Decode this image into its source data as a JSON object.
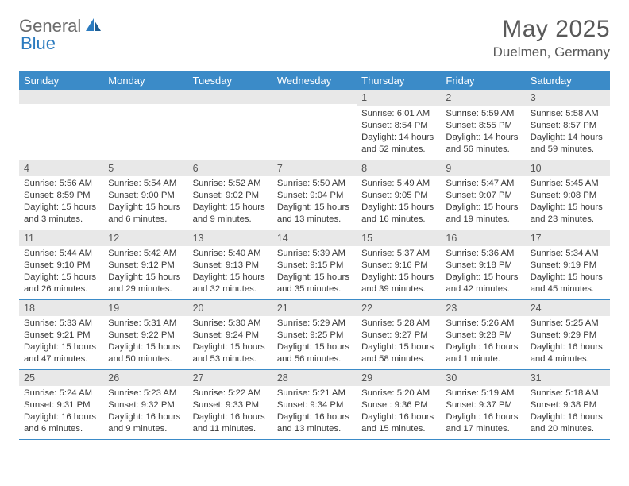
{
  "logo": {
    "part1": "General",
    "part2": "Blue"
  },
  "title": "May 2025",
  "location": "Duelmen, Germany",
  "weekday_labels": [
    "Sunday",
    "Monday",
    "Tuesday",
    "Wednesday",
    "Thursday",
    "Friday",
    "Saturday"
  ],
  "header_bg": "#3b8bc8",
  "header_fg": "#ffffff",
  "daynum_bg": "#e8e8e8",
  "row_border_color": "#3b8bc8",
  "text_color": "#3a3a3a",
  "grid": [
    [
      {
        "n": "",
        "sr": "",
        "ss": "",
        "dl": ""
      },
      {
        "n": "",
        "sr": "",
        "ss": "",
        "dl": ""
      },
      {
        "n": "",
        "sr": "",
        "ss": "",
        "dl": ""
      },
      {
        "n": "",
        "sr": "",
        "ss": "",
        "dl": ""
      },
      {
        "n": "1",
        "sr": "6:01 AM",
        "ss": "8:54 PM",
        "dl": "14 hours and 52 minutes."
      },
      {
        "n": "2",
        "sr": "5:59 AM",
        "ss": "8:55 PM",
        "dl": "14 hours and 56 minutes."
      },
      {
        "n": "3",
        "sr": "5:58 AM",
        "ss": "8:57 PM",
        "dl": "14 hours and 59 minutes."
      }
    ],
    [
      {
        "n": "4",
        "sr": "5:56 AM",
        "ss": "8:59 PM",
        "dl": "15 hours and 3 minutes."
      },
      {
        "n": "5",
        "sr": "5:54 AM",
        "ss": "9:00 PM",
        "dl": "15 hours and 6 minutes."
      },
      {
        "n": "6",
        "sr": "5:52 AM",
        "ss": "9:02 PM",
        "dl": "15 hours and 9 minutes."
      },
      {
        "n": "7",
        "sr": "5:50 AM",
        "ss": "9:04 PM",
        "dl": "15 hours and 13 minutes."
      },
      {
        "n": "8",
        "sr": "5:49 AM",
        "ss": "9:05 PM",
        "dl": "15 hours and 16 minutes."
      },
      {
        "n": "9",
        "sr": "5:47 AM",
        "ss": "9:07 PM",
        "dl": "15 hours and 19 minutes."
      },
      {
        "n": "10",
        "sr": "5:45 AM",
        "ss": "9:08 PM",
        "dl": "15 hours and 23 minutes."
      }
    ],
    [
      {
        "n": "11",
        "sr": "5:44 AM",
        "ss": "9:10 PM",
        "dl": "15 hours and 26 minutes."
      },
      {
        "n": "12",
        "sr": "5:42 AM",
        "ss": "9:12 PM",
        "dl": "15 hours and 29 minutes."
      },
      {
        "n": "13",
        "sr": "5:40 AM",
        "ss": "9:13 PM",
        "dl": "15 hours and 32 minutes."
      },
      {
        "n": "14",
        "sr": "5:39 AM",
        "ss": "9:15 PM",
        "dl": "15 hours and 35 minutes."
      },
      {
        "n": "15",
        "sr": "5:37 AM",
        "ss": "9:16 PM",
        "dl": "15 hours and 39 minutes."
      },
      {
        "n": "16",
        "sr": "5:36 AM",
        "ss": "9:18 PM",
        "dl": "15 hours and 42 minutes."
      },
      {
        "n": "17",
        "sr": "5:34 AM",
        "ss": "9:19 PM",
        "dl": "15 hours and 45 minutes."
      }
    ],
    [
      {
        "n": "18",
        "sr": "5:33 AM",
        "ss": "9:21 PM",
        "dl": "15 hours and 47 minutes."
      },
      {
        "n": "19",
        "sr": "5:31 AM",
        "ss": "9:22 PM",
        "dl": "15 hours and 50 minutes."
      },
      {
        "n": "20",
        "sr": "5:30 AM",
        "ss": "9:24 PM",
        "dl": "15 hours and 53 minutes."
      },
      {
        "n": "21",
        "sr": "5:29 AM",
        "ss": "9:25 PM",
        "dl": "15 hours and 56 minutes."
      },
      {
        "n": "22",
        "sr": "5:28 AM",
        "ss": "9:27 PM",
        "dl": "15 hours and 58 minutes."
      },
      {
        "n": "23",
        "sr": "5:26 AM",
        "ss": "9:28 PM",
        "dl": "16 hours and 1 minute."
      },
      {
        "n": "24",
        "sr": "5:25 AM",
        "ss": "9:29 PM",
        "dl": "16 hours and 4 minutes."
      }
    ],
    [
      {
        "n": "25",
        "sr": "5:24 AM",
        "ss": "9:31 PM",
        "dl": "16 hours and 6 minutes."
      },
      {
        "n": "26",
        "sr": "5:23 AM",
        "ss": "9:32 PM",
        "dl": "16 hours and 9 minutes."
      },
      {
        "n": "27",
        "sr": "5:22 AM",
        "ss": "9:33 PM",
        "dl": "16 hours and 11 minutes."
      },
      {
        "n": "28",
        "sr": "5:21 AM",
        "ss": "9:34 PM",
        "dl": "16 hours and 13 minutes."
      },
      {
        "n": "29",
        "sr": "5:20 AM",
        "ss": "9:36 PM",
        "dl": "16 hours and 15 minutes."
      },
      {
        "n": "30",
        "sr": "5:19 AM",
        "ss": "9:37 PM",
        "dl": "16 hours and 17 minutes."
      },
      {
        "n": "31",
        "sr": "5:18 AM",
        "ss": "9:38 PM",
        "dl": "16 hours and 20 minutes."
      }
    ]
  ],
  "labels": {
    "sunrise": "Sunrise:",
    "sunset": "Sunset:",
    "daylight": "Daylight:"
  }
}
